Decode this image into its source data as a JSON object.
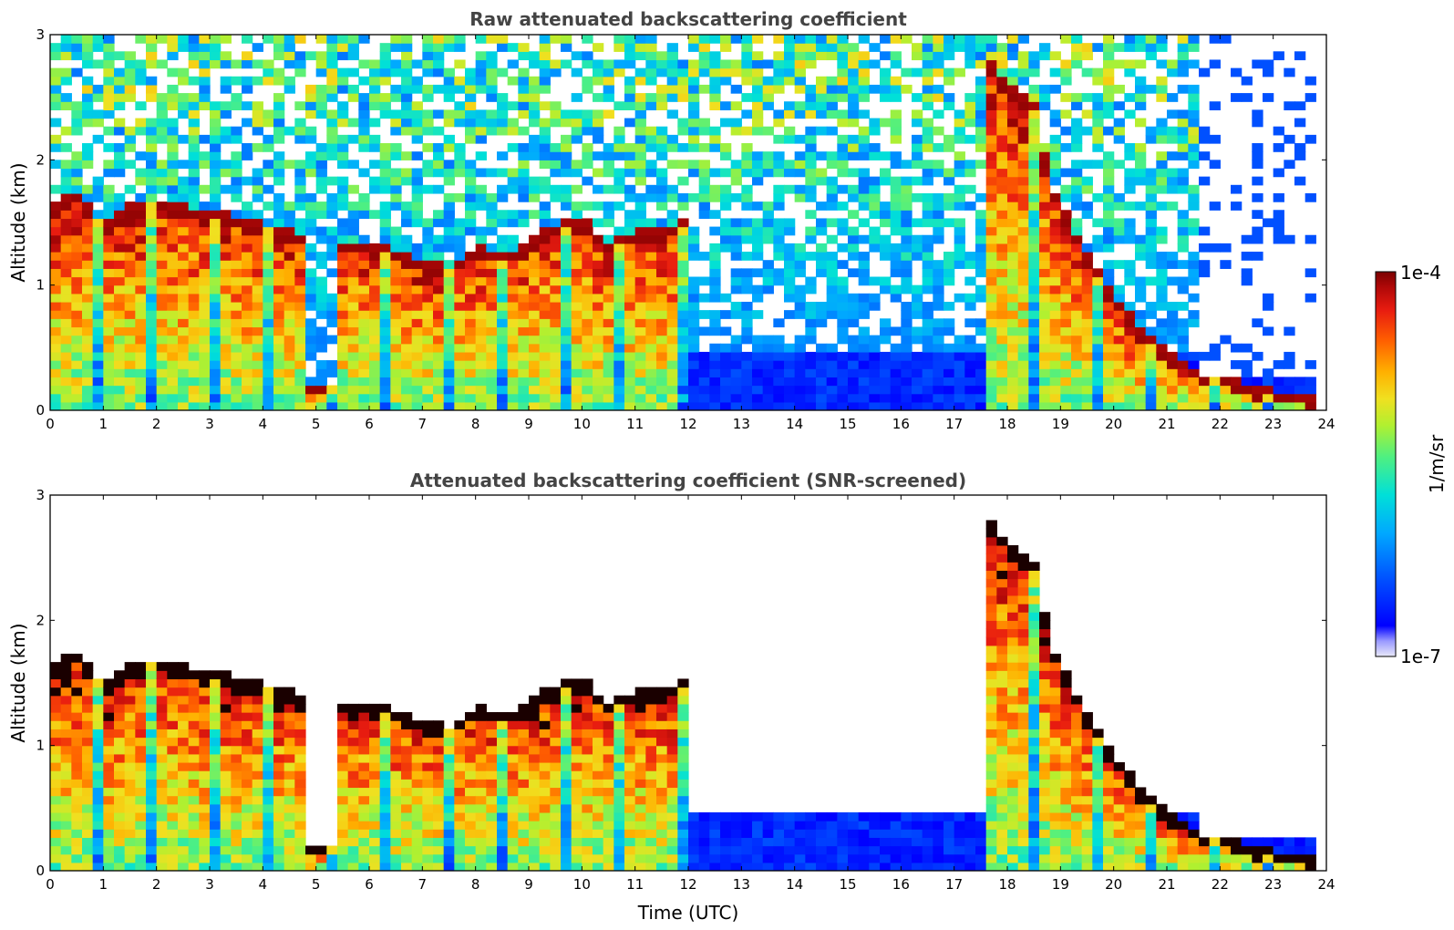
{
  "chart_data": [
    {
      "type": "heatmap",
      "title": "Raw attenuated backscattering coefficient",
      "xlabel": "",
      "ylabel": "Altitude (km)",
      "xlim": [
        0,
        24
      ],
      "ylim": [
        0,
        3
      ],
      "x_ticks": [
        "0",
        "1",
        "2",
        "3",
        "4",
        "5",
        "6",
        "7",
        "8",
        "9",
        "10",
        "11",
        "12",
        "13",
        "14",
        "15",
        "16",
        "17",
        "18",
        "19",
        "20",
        "21",
        "22",
        "23",
        "24"
      ],
      "y_ticks": [
        "0",
        "1",
        "2",
        "3"
      ],
      "screened": false,
      "cloud_base_km": [
        [
          0.0,
          1.6
        ],
        [
          0.5,
          1.7
        ],
        [
          1.0,
          1.45
        ],
        [
          1.5,
          1.6
        ],
        [
          2.0,
          1.65
        ],
        [
          2.5,
          1.6
        ],
        [
          3.0,
          1.55
        ],
        [
          3.5,
          1.5
        ],
        [
          4.0,
          1.45
        ],
        [
          4.5,
          1.4
        ],
        [
          5.5,
          1.3
        ],
        [
          6.0,
          1.3
        ],
        [
          6.5,
          1.25
        ],
        [
          7.0,
          1.15
        ],
        [
          7.5,
          1.1
        ],
        [
          8.0,
          1.28
        ],
        [
          8.5,
          1.2
        ],
        [
          9.0,
          1.3
        ],
        [
          9.5,
          1.45
        ],
        [
          10.0,
          1.5
        ],
        [
          10.5,
          1.3
        ],
        [
          11.0,
          1.4
        ],
        [
          11.5,
          1.4
        ],
        [
          12.0,
          1.5
        ],
        [
          17.5,
          2.8
        ],
        [
          18.0,
          2.6
        ],
        [
          18.5,
          2.4
        ],
        [
          18.8,
          1.8
        ],
        [
          19.5,
          1.2
        ],
        [
          20.0,
          0.9
        ],
        [
          20.5,
          0.6
        ],
        [
          21.0,
          0.45
        ],
        [
          21.5,
          0.3
        ],
        [
          22.0,
          0.25
        ],
        [
          22.5,
          0.18
        ],
        [
          23.0,
          0.12
        ],
        [
          23.8,
          0.08
        ]
      ]
    },
    {
      "type": "heatmap",
      "title": "Attenuated backscattering coefficient (SNR-screened)",
      "xlabel": "Time (UTC)",
      "ylabel": "Altitude (km)",
      "xlim": [
        0,
        24
      ],
      "ylim": [
        0,
        3
      ],
      "x_ticks": [
        "0",
        "1",
        "2",
        "3",
        "4",
        "5",
        "6",
        "7",
        "8",
        "9",
        "10",
        "11",
        "12",
        "13",
        "14",
        "15",
        "16",
        "17",
        "18",
        "19",
        "20",
        "21",
        "22",
        "23",
        "24"
      ],
      "y_ticks": [
        "0",
        "1",
        "2",
        "3"
      ],
      "screened": true,
      "cloud_base_km": [
        [
          0.0,
          1.6
        ],
        [
          0.5,
          1.7
        ],
        [
          1.0,
          1.45
        ],
        [
          1.5,
          1.6
        ],
        [
          2.0,
          1.65
        ],
        [
          2.5,
          1.6
        ],
        [
          3.0,
          1.55
        ],
        [
          3.5,
          1.5
        ],
        [
          4.0,
          1.45
        ],
        [
          4.5,
          1.4
        ],
        [
          5.5,
          1.3
        ],
        [
          6.0,
          1.3
        ],
        [
          6.5,
          1.25
        ],
        [
          7.0,
          1.15
        ],
        [
          7.5,
          1.1
        ],
        [
          8.0,
          1.28
        ],
        [
          8.5,
          1.2
        ],
        [
          9.0,
          1.3
        ],
        [
          9.5,
          1.45
        ],
        [
          10.0,
          1.5
        ],
        [
          10.5,
          1.3
        ],
        [
          11.0,
          1.4
        ],
        [
          11.5,
          1.4
        ],
        [
          12.0,
          1.5
        ],
        [
          17.5,
          2.8
        ],
        [
          18.0,
          2.6
        ],
        [
          18.5,
          2.4
        ],
        [
          18.8,
          1.8
        ],
        [
          19.5,
          1.2
        ],
        [
          20.0,
          0.9
        ],
        [
          20.5,
          0.6
        ],
        [
          21.0,
          0.45
        ],
        [
          21.5,
          0.3
        ],
        [
          22.0,
          0.25
        ],
        [
          22.5,
          0.18
        ],
        [
          23.0,
          0.12
        ],
        [
          23.8,
          0.08
        ]
      ]
    }
  ],
  "colorbar": {
    "max_label": "1e-4",
    "min_label": "1e-7",
    "unit_label": "1/m/sr",
    "colors": [
      "#e8e8f8",
      "#6b6bff",
      "#0000ff",
      "#0060ff",
      "#00a0ff",
      "#00e0e0",
      "#40f090",
      "#a0f040",
      "#f0f020",
      "#ffc000",
      "#ff7a00",
      "#f03010",
      "#c80a0a",
      "#7a0000"
    ]
  }
}
